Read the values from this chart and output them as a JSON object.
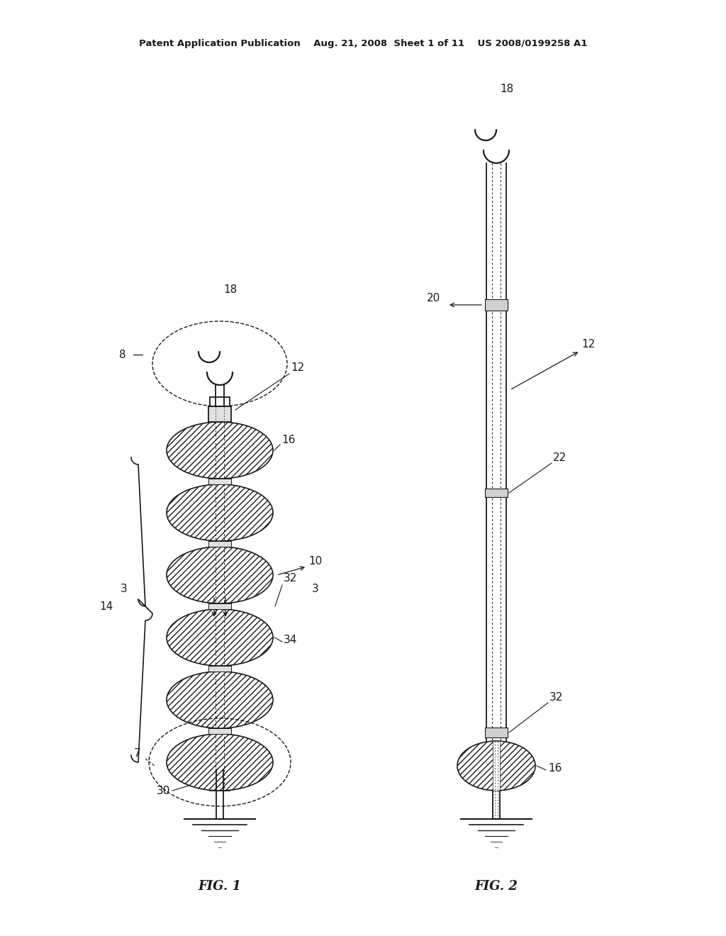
{
  "bg_color": "#ffffff",
  "lc": "#1a1a1a",
  "header": "Patent Application Publication    Aug. 21, 2008  Sheet 1 of 11    US 2008/0199258 A1",
  "fig1_label": "FIG. 1",
  "fig2_label": "FIG. 2"
}
